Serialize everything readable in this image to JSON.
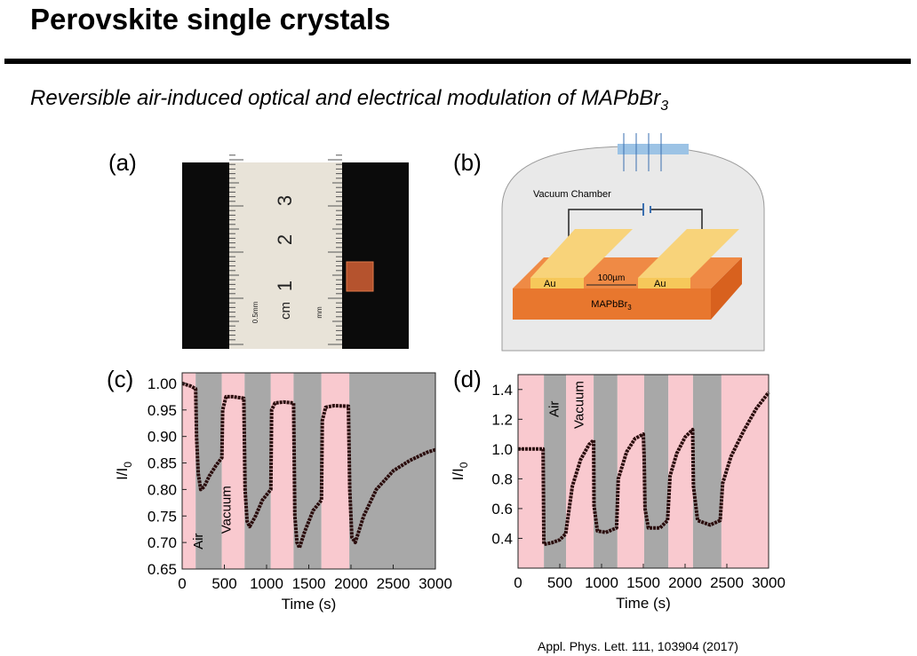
{
  "header": {
    "title": "Perovskite single crystals",
    "subtitle": "Reversible air-induced optical and electrical modulation of MAPbBr",
    "subtitle_subscript": "3"
  },
  "panels": {
    "a": {
      "label": "(a)",
      "ruler_numbers": [
        "1",
        "2",
        "3"
      ],
      "ruler_unit": "cm",
      "ruler_mm": "mm",
      "ruler_half": "0.5mm"
    },
    "b": {
      "label": "(b)",
      "chamber": "Vacuum Chamber",
      "electrode_left": "Au",
      "electrode_right": "Au",
      "gap": "100µm",
      "crystal": "MAPbBr",
      "crystal_subscript": "3"
    }
  },
  "chart_data": [
    {
      "type": "line",
      "panel_label": "(c)",
      "xlabel": "Time (s)",
      "ylabel": "I/I",
      "ylabel_subscript": "0",
      "color": "#2b0d0d",
      "xlim": [
        0,
        3000
      ],
      "ylim": [
        0.65,
        1.02
      ],
      "xticks": [
        0,
        500,
        1000,
        1500,
        2000,
        2500,
        3000
      ],
      "yticks": [
        {
          "value": 0.65,
          "label": "0.65"
        },
        {
          "value": 0.7,
          "label": "0.70"
        },
        {
          "value": 0.75,
          "label": "0.75"
        },
        {
          "value": 0.8,
          "label": "0.80"
        },
        {
          "value": 0.85,
          "label": "0.85"
        },
        {
          "value": 0.9,
          "label": "0.90"
        },
        {
          "value": 0.95,
          "label": "0.95"
        },
        {
          "value": 1.0,
          "label": "1.00"
        }
      ],
      "bands": [
        {
          "x0": 0,
          "x1": 160,
          "color": "#f9c9cf"
        },
        {
          "x0": 160,
          "x1": 470,
          "color": "#a8a8a8"
        },
        {
          "x0": 470,
          "x1": 740,
          "color": "#f9c9cf"
        },
        {
          "x0": 740,
          "x1": 1050,
          "color": "#a8a8a8"
        },
        {
          "x0": 1050,
          "x1": 1320,
          "color": "#f9c9cf"
        },
        {
          "x0": 1320,
          "x1": 1650,
          "color": "#a8a8a8"
        },
        {
          "x0": 1650,
          "x1": 1980,
          "color": "#f9c9cf"
        },
        {
          "x0": 1980,
          "x1": 3000,
          "color": "#a8a8a8"
        }
      ],
      "annotations": [
        "Air",
        "Vacuum"
      ],
      "x": [
        0,
        100,
        160,
        170,
        190,
        220,
        260,
        320,
        400,
        470,
        480,
        520,
        600,
        730,
        745,
        770,
        800,
        870,
        950,
        1050,
        1060,
        1100,
        1200,
        1320,
        1335,
        1360,
        1390,
        1450,
        1550,
        1650,
        1660,
        1700,
        1800,
        1970,
        1985,
        2010,
        2050,
        2150,
        2300,
        2500,
        2700,
        2900,
        3000
      ],
      "values": [
        1.0,
        0.995,
        0.99,
        0.9,
        0.83,
        0.8,
        0.805,
        0.825,
        0.845,
        0.86,
        0.95,
        0.975,
        0.975,
        0.972,
        0.8,
        0.74,
        0.73,
        0.75,
        0.78,
        0.8,
        0.95,
        0.963,
        0.965,
        0.963,
        0.75,
        0.7,
        0.69,
        0.72,
        0.76,
        0.78,
        0.93,
        0.955,
        0.958,
        0.957,
        0.8,
        0.71,
        0.7,
        0.75,
        0.8,
        0.835,
        0.855,
        0.87,
        0.875
      ]
    },
    {
      "type": "line",
      "panel_label": "(d)",
      "xlabel": "Time (s)",
      "ylabel": "I/I",
      "ylabel_subscript": "0",
      "color": "#2b0d0d",
      "xlim": [
        0,
        3000
      ],
      "ylim": [
        0.2,
        1.5
      ],
      "xticks": [
        0,
        500,
        1000,
        1500,
        2000,
        2500,
        3000
      ],
      "yticks": [
        0.4,
        0.6,
        0.8,
        {
          "value": 1.0,
          "label": "1.0"
        },
        1.2,
        1.4
      ],
      "bands": [
        {
          "x0": 0,
          "x1": 310,
          "color": "#f9c9cf"
        },
        {
          "x0": 310,
          "x1": 575,
          "color": "#a8a8a8"
        },
        {
          "x0": 575,
          "x1": 905,
          "color": "#f9c9cf"
        },
        {
          "x0": 905,
          "x1": 1190,
          "color": "#a8a8a8"
        },
        {
          "x0": 1190,
          "x1": 1510,
          "color": "#f9c9cf"
        },
        {
          "x0": 1510,
          "x1": 1800,
          "color": "#a8a8a8"
        },
        {
          "x0": 1800,
          "x1": 2095,
          "color": "#f9c9cf"
        },
        {
          "x0": 2095,
          "x1": 2435,
          "color": "#a8a8a8"
        },
        {
          "x0": 2435,
          "x1": 3000,
          "color": "#f9c9cf"
        }
      ],
      "annotations": [
        "Air",
        "Vacuum"
      ],
      "x": [
        0,
        150,
        300,
        310,
        400,
        500,
        570,
        600,
        650,
        750,
        850,
        905,
        910,
        950,
        1050,
        1180,
        1200,
        1300,
        1400,
        1500,
        1510,
        1520,
        1560,
        1700,
        1790,
        1820,
        1900,
        2000,
        2090,
        2100,
        2150,
        2300,
        2420,
        2450,
        2550,
        2700,
        2850,
        3000
      ],
      "values": [
        1.0,
        1.0,
        1.0,
        0.36,
        0.37,
        0.39,
        0.43,
        0.55,
        0.75,
        0.93,
        1.03,
        1.06,
        0.62,
        0.45,
        0.44,
        0.47,
        0.8,
        0.98,
        1.07,
        1.1,
        0.95,
        0.6,
        0.47,
        0.47,
        0.52,
        0.82,
        0.97,
        1.08,
        1.13,
        0.75,
        0.52,
        0.49,
        0.52,
        0.77,
        0.95,
        1.12,
        1.27,
        1.38
      ]
    }
  ],
  "citation": "Appl. Phys. Lett. 111, 103904 (2017)"
}
